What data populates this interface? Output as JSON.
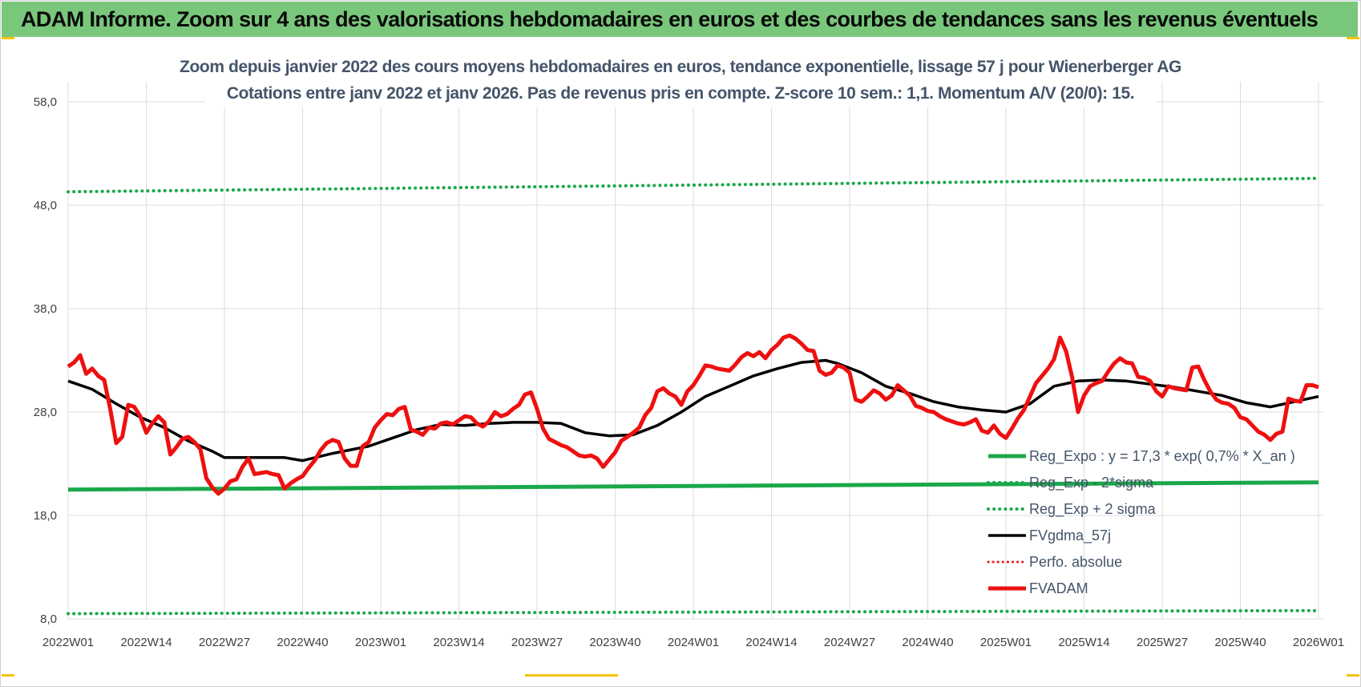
{
  "header": {
    "title": "ADAM Informe. Zoom sur 4 ans des valorisations hebdomadaires en euros et des courbes de tendances sans les revenus éventuels"
  },
  "colors": {
    "banner": "#79c77b",
    "accent": "#f3c400",
    "green": "#1aa84a",
    "red": "#ee1010",
    "black": "#000000",
    "text": "#44546a"
  },
  "chart_data": {
    "type": "line",
    "title": "Zoom depuis janvier 2022 des cours moyens hebdomadaires en euros, tendance exponentielle, lissage 57 j pour Wienerberger AG",
    "subtitle": "Cotations entre janv 2022 et janv 2026. Pas de revenus pris en compte. Z-score 10 sem.: 1,1. Momentum A/V (20/0): 15.",
    "xlabel": "",
    "ylabel": "",
    "ylim": [
      8,
      58
    ],
    "yticks": [
      "58,0",
      "48,0",
      "38,0",
      "28,0",
      "18,0",
      "8,0"
    ],
    "ytick_values": [
      58,
      48,
      38,
      28,
      18,
      8
    ],
    "x_tick_labels": [
      "2022W01",
      "2022W14",
      "2022W27",
      "2022W40",
      "2023W01",
      "2023W14",
      "2023W27",
      "2023W40",
      "2024W01",
      "2024W14",
      "2024W27",
      "2024W40",
      "2025W01",
      "2025W14",
      "2025W27",
      "2025W40",
      "2026W01"
    ],
    "x_tick_weeks": [
      0,
      13,
      26,
      39,
      52,
      65,
      78,
      91,
      104,
      117,
      130,
      143,
      156,
      169,
      182,
      195,
      208
    ],
    "grid": true,
    "legend_position": "right",
    "series": [
      {
        "name": "Reg_Expo : y = 17,3 * exp( 0,7% * X_an )",
        "style": "solid-green",
        "weeks": [
          0,
          208
        ],
        "values": [
          20.5,
          21.2
        ]
      },
      {
        "name": "Reg_Exp - 2*sigma",
        "style": "dotted-green",
        "weeks": [
          0,
          208
        ],
        "values": [
          8.5,
          8.8
        ]
      },
      {
        "name": "Reg_Exp + 2 sigma",
        "style": "dotted-green",
        "weeks": [
          0,
          208
        ],
        "values": [
          49.3,
          50.6
        ]
      },
      {
        "name": "FVgdma_57j",
        "style": "solid-black",
        "weeks": [
          0,
          4,
          8,
          12,
          16,
          20,
          24,
          26,
          30,
          36,
          39,
          44,
          50,
          54,
          58,
          62,
          66,
          70,
          74,
          78,
          82,
          86,
          90,
          94,
          98,
          102,
          106,
          110,
          114,
          118,
          122,
          126,
          128,
          132,
          136,
          140,
          144,
          148,
          152,
          156,
          160,
          164,
          168,
          172,
          176,
          180,
          184,
          188,
          192,
          196,
          200,
          204,
          208
        ],
        "values": [
          31.0,
          30.2,
          28.8,
          27.5,
          26.5,
          25.2,
          24.2,
          23.6,
          23.6,
          23.6,
          23.3,
          24.0,
          24.7,
          25.5,
          26.3,
          26.8,
          26.7,
          26.9,
          27.0,
          27.0,
          26.9,
          26.0,
          25.7,
          25.8,
          26.7,
          28.0,
          29.5,
          30.5,
          31.5,
          32.2,
          32.8,
          33.0,
          32.7,
          31.8,
          30.5,
          29.8,
          29.0,
          28.5,
          28.2,
          28.0,
          28.8,
          30.5,
          31.0,
          31.1,
          31.0,
          30.7,
          30.4,
          30.0,
          29.6,
          28.9,
          28.5,
          29.0,
          29.5
        ]
      },
      {
        "name": "Perfo. absolue",
        "style": "dotted-red",
        "weeks": [],
        "values": []
      },
      {
        "name": "FVADAM",
        "style": "thick-red",
        "weeks": [
          0,
          1,
          2,
          3,
          4,
          5,
          6,
          7,
          8,
          9,
          10,
          11,
          12,
          13,
          14,
          15,
          16,
          17,
          18,
          19,
          20,
          21,
          22,
          23,
          24,
          25,
          26,
          27,
          28,
          29,
          30,
          31,
          32,
          33,
          34,
          35,
          36,
          37,
          38,
          39,
          40,
          41,
          42,
          43,
          44,
          45,
          46,
          47,
          48,
          49,
          50,
          51,
          52,
          53,
          54,
          55,
          56,
          57,
          58,
          59,
          60,
          61,
          62,
          63,
          64,
          65,
          66,
          67,
          68,
          69,
          70,
          71,
          72,
          73,
          74,
          75,
          76,
          77,
          78,
          79,
          80,
          81,
          82,
          83,
          84,
          85,
          86,
          87,
          88,
          89,
          90,
          91,
          92,
          93,
          94,
          95,
          96,
          97,
          98,
          99,
          100,
          101,
          102,
          103,
          104,
          105,
          106,
          107,
          108,
          109,
          110,
          111,
          112,
          113,
          114,
          115,
          116,
          117,
          118,
          119,
          120,
          121,
          122,
          123,
          124,
          125,
          126,
          127,
          128,
          129,
          130,
          131,
          132,
          133,
          134,
          135,
          136,
          137,
          138,
          139,
          140,
          141,
          142,
          143,
          144,
          145,
          146,
          147,
          148,
          149,
          150,
          151,
          152,
          153,
          154,
          155,
          156,
          157,
          158,
          159,
          160,
          161,
          162,
          163,
          164,
          165,
          166,
          167,
          168,
          169,
          170,
          171,
          172,
          173,
          174,
          175,
          176,
          177,
          178,
          179,
          180,
          181,
          182,
          183,
          184,
          185,
          186,
          187,
          188,
          189,
          190,
          191,
          192,
          193,
          194,
          195,
          196,
          197,
          198,
          199,
          200,
          201,
          202,
          203,
          204,
          205,
          206,
          207,
          208
        ],
        "values": [
          32.4,
          32.8,
          33.5,
          31.7,
          32.2,
          31.5,
          31.1,
          28.3,
          25.0,
          25.6,
          28.7,
          28.5,
          27.6,
          26.0,
          26.9,
          27.6,
          27.0,
          23.9,
          24.6,
          25.4,
          25.6,
          25.1,
          24.4,
          21.6,
          20.7,
          20.1,
          20.6,
          21.3,
          21.5,
          22.7,
          23.5,
          22.0,
          22.1,
          22.2,
          22.0,
          21.9,
          20.6,
          21.1,
          21.5,
          21.8,
          22.6,
          23.3,
          24.3,
          25.0,
          25.3,
          25.1,
          23.5,
          22.8,
          22.8,
          24.7,
          25.1,
          26.5,
          27.2,
          27.8,
          27.7,
          28.3,
          28.5,
          26.3,
          26.1,
          25.8,
          26.5,
          26.4,
          26.9,
          27.0,
          26.8,
          27.2,
          27.6,
          27.5,
          26.9,
          26.6,
          27.1,
          28.0,
          27.6,
          27.8,
          28.3,
          28.7,
          29.7,
          29.9,
          28.3,
          26.4,
          25.4,
          25.1,
          24.8,
          24.6,
          24.2,
          23.8,
          23.7,
          23.8,
          23.5,
          22.7,
          23.4,
          24.1,
          25.2,
          25.6,
          26.0,
          26.5,
          27.7,
          28.4,
          30.0,
          30.3,
          29.8,
          29.5,
          28.7,
          30.0,
          30.6,
          31.5,
          32.5,
          32.4,
          32.2,
          32.1,
          32.0,
          32.6,
          33.3,
          33.7,
          33.4,
          33.8,
          33.2,
          34.0,
          34.5,
          35.2,
          35.4,
          35.1,
          34.6,
          34.0,
          33.9,
          32.0,
          31.6,
          31.8,
          32.5,
          32.3,
          31.8,
          29.2,
          29.0,
          29.5,
          30.1,
          29.8,
          29.2,
          29.6,
          30.6,
          30.1,
          29.6,
          28.6,
          28.4,
          28.1,
          28.0,
          27.6,
          27.3,
          27.1,
          26.9,
          26.8,
          27.0,
          27.3,
          26.2,
          26.0,
          26.7,
          25.9,
          25.5,
          26.4,
          27.4,
          28.2,
          29.5,
          30.8,
          31.5,
          32.2,
          33.1,
          35.2,
          33.9,
          31.4,
          28.0,
          29.6,
          30.5,
          30.8,
          31.0,
          31.9,
          32.7,
          33.2,
          32.8,
          32.7,
          31.4,
          31.3,
          31.0,
          30.0,
          29.5,
          30.5,
          30.3,
          30.2,
          30.1,
          32.3,
          32.4,
          31.1,
          30.0,
          29.2,
          28.9,
          28.8,
          28.4,
          27.5,
          27.3,
          26.7,
          26.1,
          25.8,
          25.3,
          25.9,
          26.1,
          29.3,
          29.1,
          29.0,
          30.6,
          30.6,
          30.4
        ]
      }
    ]
  }
}
